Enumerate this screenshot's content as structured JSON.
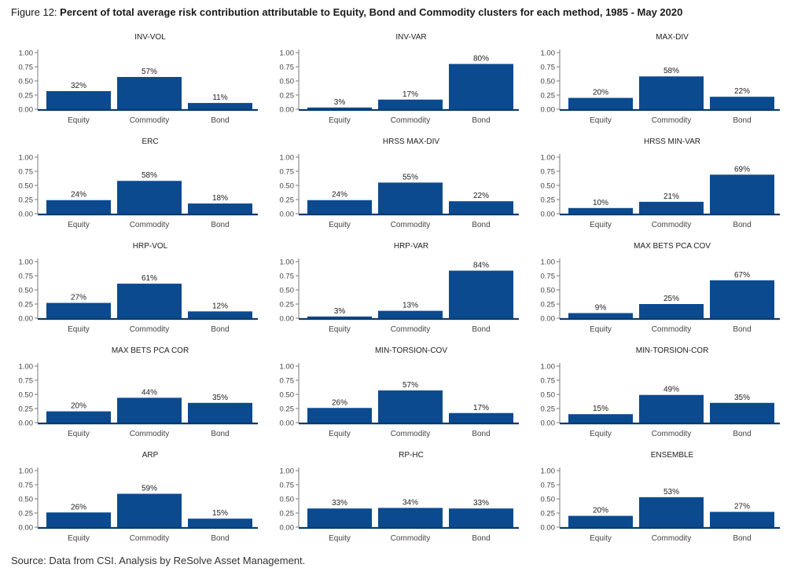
{
  "figure": {
    "prefix": "Figure 12: ",
    "title": "Percent of total average risk contribution attributable to Equity, Bond and Commodity clusters for each method, 1985 - May 2020",
    "source": "Source: Data from CSI. Analysis by ReSolve Asset Management."
  },
  "colors": {
    "bar": "#0b4a8f",
    "axis": "#0b3a6b"
  },
  "chart_data": [
    {
      "type": "bar",
      "title": "INV-VOL",
      "categories": [
        "Equity",
        "Commodity",
        "Bond"
      ],
      "values": [
        0.32,
        0.57,
        0.11
      ],
      "labels": [
        "32%",
        "57%",
        "11%"
      ],
      "ylim": [
        0,
        1
      ],
      "yticks": [
        "1.00",
        "0.75",
        "0.50",
        "0.25",
        "0.00"
      ]
    },
    {
      "type": "bar",
      "title": "INV-VAR",
      "categories": [
        "Equity",
        "Commodity",
        "Bond"
      ],
      "values": [
        0.03,
        0.17,
        0.8
      ],
      "labels": [
        "3%",
        "17%",
        "80%"
      ],
      "ylim": [
        0,
        1
      ],
      "yticks": [
        "1.00",
        "0.75",
        "0.50",
        "0.25",
        "0.00"
      ]
    },
    {
      "type": "bar",
      "title": "MAX-DIV",
      "categories": [
        "Equity",
        "Commodity",
        "Bond"
      ],
      "values": [
        0.2,
        0.58,
        0.22
      ],
      "labels": [
        "20%",
        "58%",
        "22%"
      ],
      "ylim": [
        0,
        1
      ],
      "yticks": [
        "1.00",
        "0.75",
        "0.50",
        "0.25",
        "0.00"
      ]
    },
    {
      "type": "bar",
      "title": "ERC",
      "categories": [
        "Equity",
        "Commodity",
        "Bond"
      ],
      "values": [
        0.24,
        0.58,
        0.18
      ],
      "labels": [
        "24%",
        "58%",
        "18%"
      ],
      "ylim": [
        0,
        1
      ],
      "yticks": [
        "1.00",
        "0.75",
        "0.50",
        "0.25",
        "0.00"
      ]
    },
    {
      "type": "bar",
      "title": "HRSS MAX-DIV",
      "categories": [
        "Equity",
        "Commodity",
        "Bond"
      ],
      "values": [
        0.24,
        0.55,
        0.22
      ],
      "labels": [
        "24%",
        "55%",
        "22%"
      ],
      "ylim": [
        0,
        1
      ],
      "yticks": [
        "1.00",
        "0.75",
        "0.50",
        "0.25",
        "0.00"
      ]
    },
    {
      "type": "bar",
      "title": "HRSS MIN-VAR",
      "categories": [
        "Equity",
        "Commodity",
        "Bond"
      ],
      "values": [
        0.1,
        0.21,
        0.69
      ],
      "labels": [
        "10%",
        "21%",
        "69%"
      ],
      "ylim": [
        0,
        1
      ],
      "yticks": [
        "1.00",
        "0.75",
        "0.50",
        "0.25",
        "0.00"
      ]
    },
    {
      "type": "bar",
      "title": "HRP-VOL",
      "categories": [
        "Equity",
        "Commodity",
        "Bond"
      ],
      "values": [
        0.27,
        0.61,
        0.12
      ],
      "labels": [
        "27%",
        "61%",
        "12%"
      ],
      "ylim": [
        0,
        1
      ],
      "yticks": [
        "1.00",
        "0.75",
        "0.50",
        "0.25",
        "0.00"
      ]
    },
    {
      "type": "bar",
      "title": "HRP-VAR",
      "categories": [
        "Equity",
        "Commodity",
        "Bond"
      ],
      "values": [
        0.03,
        0.13,
        0.84
      ],
      "labels": [
        "3%",
        "13%",
        "84%"
      ],
      "ylim": [
        0,
        1
      ],
      "yticks": [
        "1.00",
        "0.75",
        "0.50",
        "0.25",
        "0.00"
      ]
    },
    {
      "type": "bar",
      "title": "MAX BETS PCA COV",
      "categories": [
        "Equity",
        "Commodity",
        "Bond"
      ],
      "values": [
        0.09,
        0.25,
        0.67
      ],
      "labels": [
        "9%",
        "25%",
        "67%"
      ],
      "ylim": [
        0,
        1
      ],
      "yticks": [
        "1.00",
        "0.75",
        "0.50",
        "0.25",
        "0.00"
      ]
    },
    {
      "type": "bar",
      "title": "MAX BETS PCA COR",
      "categories": [
        "Equity",
        "Commodity",
        "Bond"
      ],
      "values": [
        0.2,
        0.44,
        0.35
      ],
      "labels": [
        "20%",
        "44%",
        "35%"
      ],
      "ylim": [
        0,
        1
      ],
      "yticks": [
        "1.00",
        "0.75",
        "0.50",
        "0.25",
        "0.00"
      ]
    },
    {
      "type": "bar",
      "title": "MIN-TORSION-COV",
      "categories": [
        "Equity",
        "Commodity",
        "Bond"
      ],
      "values": [
        0.26,
        0.57,
        0.17
      ],
      "labels": [
        "26%",
        "57%",
        "17%"
      ],
      "ylim": [
        0,
        1
      ],
      "yticks": [
        "1.00",
        "0.75",
        "0.50",
        "0.25",
        "0.00"
      ]
    },
    {
      "type": "bar",
      "title": "MIN-TORSION-COR",
      "categories": [
        "Equity",
        "Commodity",
        "Bond"
      ],
      "values": [
        0.15,
        0.49,
        0.35
      ],
      "labels": [
        "15%",
        "49%",
        "35%"
      ],
      "ylim": [
        0,
        1
      ],
      "yticks": [
        "1.00",
        "0.75",
        "0.50",
        "0.25",
        "0.00"
      ]
    },
    {
      "type": "bar",
      "title": "ARP",
      "categories": [
        "Equity",
        "Commodity",
        "Bond"
      ],
      "values": [
        0.26,
        0.59,
        0.15
      ],
      "labels": [
        "26%",
        "59%",
        "15%"
      ],
      "ylim": [
        0,
        1
      ],
      "yticks": [
        "1.00",
        "0.75",
        "0.50",
        "0.25",
        "0.00"
      ]
    },
    {
      "type": "bar",
      "title": "RP-HC",
      "categories": [
        "Equity",
        "Commodity",
        "Bond"
      ],
      "values": [
        0.33,
        0.34,
        0.33
      ],
      "labels": [
        "33%",
        "34%",
        "33%"
      ],
      "ylim": [
        0,
        1
      ],
      "yticks": [
        "1.00",
        "0.75",
        "0.50",
        "0.25",
        "0.00"
      ]
    },
    {
      "type": "bar",
      "title": "ENSEMBLE",
      "categories": [
        "Equity",
        "Commodity",
        "Bond"
      ],
      "values": [
        0.2,
        0.53,
        0.27
      ],
      "labels": [
        "20%",
        "53%",
        "27%"
      ],
      "ylim": [
        0,
        1
      ],
      "yticks": [
        "1.00",
        "0.75",
        "0.50",
        "0.25",
        "0.00"
      ]
    }
  ]
}
